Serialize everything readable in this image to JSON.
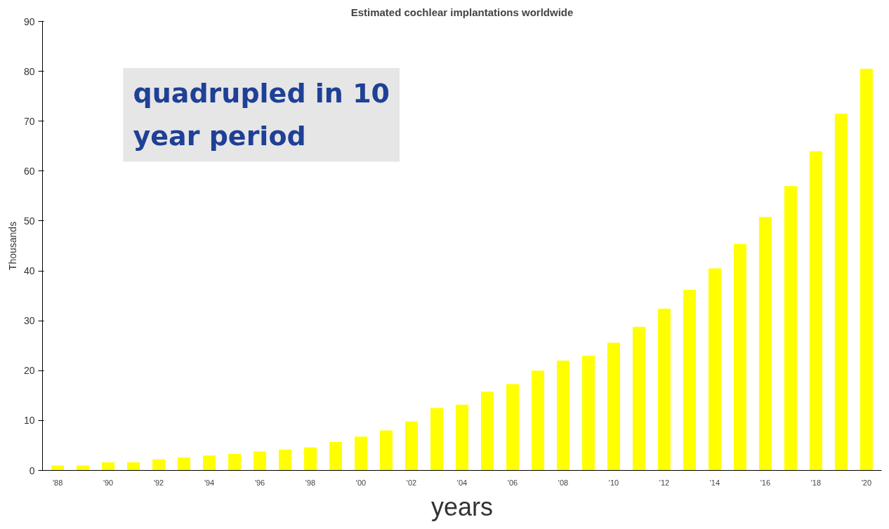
{
  "chart_data": {
    "type": "bar",
    "title": "Estimated cochlear implantations worldwide",
    "xlabel": "years",
    "ylabel": "Thousands",
    "categories": [
      "'88",
      null,
      "'90",
      null,
      "'92",
      null,
      "'94",
      null,
      "'96",
      null,
      "'98",
      null,
      "'00",
      null,
      "'02",
      null,
      "'04",
      null,
      "'06",
      null,
      "'08",
      null,
      "'10",
      null,
      "'12",
      null,
      "'14",
      null,
      "'16",
      null,
      "'18",
      null,
      "'20"
    ],
    "values": [
      1.0,
      1.0,
      1.6,
      1.6,
      2.2,
      2.6,
      3.0,
      3.3,
      3.8,
      4.2,
      4.6,
      5.7,
      6.8,
      8.0,
      9.8,
      12.5,
      13.2,
      15.8,
      17.3,
      20.0,
      22.0,
      23.0,
      25.6,
      28.8,
      32.4,
      36.2,
      40.5,
      45.4,
      50.8,
      57.0,
      64.0,
      71.5,
      80.5
    ],
    "color": "#ffff00",
    "ylim": [
      0,
      90
    ],
    "yticks": [
      0,
      10,
      20,
      30,
      40,
      50,
      60,
      70,
      80,
      90
    ],
    "grid": false,
    "annotations": [
      "quadrupled in 10 year period"
    ]
  }
}
